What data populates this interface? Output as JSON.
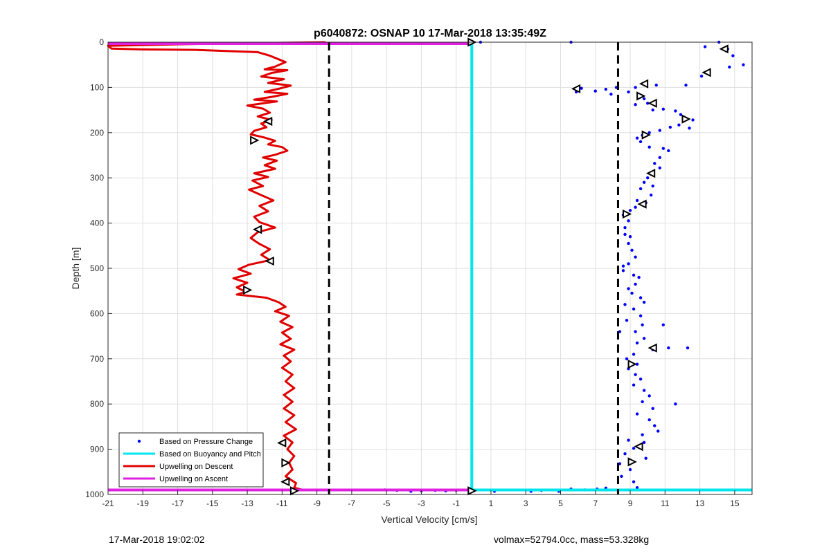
{
  "chart_data": {
    "type": "scatter",
    "title": "p6040872: OSNAP 10 17-Mar-2018 13:35:49Z",
    "xlabel": "Vertical Velocity [cm/s]",
    "ylabel": "Depth [m]",
    "xlim": [
      -21,
      16
    ],
    "ylim": [
      0,
      1000
    ],
    "y_reversed": true,
    "grid": true,
    "x_ticks": [
      -21,
      -19,
      -17,
      -15,
      -13,
      -11,
      -9,
      -7,
      -5,
      -3,
      -1,
      1,
      3,
      5,
      7,
      9,
      11,
      13,
      15
    ],
    "y_ticks": [
      0,
      100,
      200,
      300,
      400,
      500,
      600,
      700,
      800,
      900,
      1000
    ],
    "legend_position": "bottom-left",
    "series": [
      {
        "name": "Based on Pressure Change",
        "kind": "points",
        "color": "#0000ff",
        "points": [
          [
            5.6,
            0
          ],
          [
            14.1,
            0
          ],
          [
            13.3,
            10
          ],
          [
            14.6,
            15
          ],
          [
            14.9,
            30
          ],
          [
            15.5,
            50
          ],
          [
            14.7,
            55
          ],
          [
            13.1,
            75
          ],
          [
            12.2,
            95
          ],
          [
            10.5,
            95
          ],
          [
            9.3,
            100
          ],
          [
            8.9,
            110
          ],
          [
            8.2,
            100
          ],
          [
            7.6,
            104
          ],
          [
            7.0,
            108
          ],
          [
            6.2,
            102
          ],
          [
            5.9,
            110
          ],
          [
            7.9,
            115
          ],
          [
            9.8,
            125
          ],
          [
            9.3,
            138
          ],
          [
            10.3,
            150
          ],
          [
            10.0,
            135
          ],
          [
            10.9,
            148
          ],
          [
            11.6,
            152
          ],
          [
            11.9,
            160
          ],
          [
            12.6,
            172
          ],
          [
            12.4,
            190
          ],
          [
            11.8,
            183
          ],
          [
            11.3,
            188
          ],
          [
            10.7,
            195
          ],
          [
            10.1,
            200
          ],
          [
            9.7,
            206
          ],
          [
            9.4,
            212
          ],
          [
            9.6,
            220
          ],
          [
            10.1,
            232
          ],
          [
            10.9,
            235
          ],
          [
            11.2,
            240
          ],
          [
            10.7,
            255
          ],
          [
            10.4,
            268
          ],
          [
            10.7,
            278
          ],
          [
            10.2,
            292
          ],
          [
            10.0,
            300
          ],
          [
            9.8,
            310
          ],
          [
            10.3,
            318
          ],
          [
            9.6,
            324
          ],
          [
            10.2,
            338
          ],
          [
            9.4,
            350
          ],
          [
            9.9,
            355
          ],
          [
            9.3,
            365
          ],
          [
            9.0,
            372
          ],
          [
            8.6,
            382
          ],
          [
            8.9,
            395
          ],
          [
            8.7,
            410
          ],
          [
            8.7,
            425
          ],
          [
            9.0,
            430
          ],
          [
            8.9,
            445
          ],
          [
            9.1,
            460
          ],
          [
            9.3,
            475
          ],
          [
            8.9,
            490
          ],
          [
            8.6,
            505
          ],
          [
            9.2,
            515
          ],
          [
            9.5,
            520
          ],
          [
            9.3,
            535
          ],
          [
            8.9,
            545
          ],
          [
            9.1,
            555
          ],
          [
            9.6,
            565
          ],
          [
            9.8,
            575
          ],
          [
            9.2,
            590
          ],
          [
            9.6,
            605
          ],
          [
            8.8,
            615
          ],
          [
            9.7,
            625
          ],
          [
            9.3,
            640
          ],
          [
            9.8,
            655
          ],
          [
            9.4,
            665
          ],
          [
            10.3,
            680
          ],
          [
            11.2,
            676
          ],
          [
            12.3,
            676
          ],
          [
            9.2,
            690
          ],
          [
            8.8,
            700
          ],
          [
            9.4,
            712
          ],
          [
            8.9,
            722
          ],
          [
            9.3,
            735
          ],
          [
            9.6,
            745
          ],
          [
            9.2,
            758
          ],
          [
            9.8,
            770
          ],
          [
            10.1,
            782
          ],
          [
            9.7,
            795
          ],
          [
            10.3,
            810
          ],
          [
            9.4,
            822
          ],
          [
            10.1,
            835
          ],
          [
            10.4,
            848
          ],
          [
            10.6,
            860
          ],
          [
            9.7,
            868
          ],
          [
            8.9,
            880
          ],
          [
            9.8,
            885
          ],
          [
            9.2,
            898
          ],
          [
            8.7,
            910
          ],
          [
            9.9,
            920
          ],
          [
            8.4,
            932
          ],
          [
            9.0,
            945
          ],
          [
            8.5,
            960
          ],
          [
            9.2,
            972
          ],
          [
            9.4,
            985
          ],
          [
            11.6,
            800
          ],
          [
            10.9,
            625
          ],
          [
            8.4,
            640
          ],
          [
            8.6,
            495
          ],
          [
            8.7,
            580
          ],
          [
            -5.1,
            990
          ],
          [
            -4.4,
            991
          ],
          [
            -3.6,
            993
          ],
          [
            -3.0,
            992
          ],
          [
            -2.2,
            991
          ],
          [
            -1.6,
            992
          ],
          [
            -1.0,
            991
          ],
          [
            -0.3,
            990
          ],
          [
            1.2,
            993
          ],
          [
            3.3,
            993
          ],
          [
            3.9,
            991
          ],
          [
            4.9,
            993
          ],
          [
            5.6,
            988
          ],
          [
            6.4,
            990
          ],
          [
            7.1,
            988
          ],
          [
            7.6,
            986
          ],
          [
            0.4,
            0
          ]
        ]
      },
      {
        "name": "Based on Buoyancy and Pitch",
        "kind": "line",
        "color": "#00e5ee",
        "points": [
          [
            -0.1,
            0
          ],
          [
            -0.1,
            990
          ]
        ],
        "points_2": [
          [
            -0.1,
            990
          ],
          [
            16,
            990
          ]
        ]
      },
      {
        "name": "Upwelling on Descent",
        "kind": "line",
        "color": "#e00000",
        "points": [
          [
            -8.5,
            0
          ],
          [
            -16,
            4
          ],
          [
            -21,
            8
          ],
          [
            -20.8,
            14
          ],
          [
            -19,
            16
          ],
          [
            -16,
            17
          ],
          [
            -12.4,
            22
          ],
          [
            -11.7,
            30
          ],
          [
            -10.8,
            44
          ],
          [
            -11.4,
            54
          ],
          [
            -12.0,
            60
          ],
          [
            -10.7,
            62
          ],
          [
            -11.6,
            68
          ],
          [
            -12.2,
            76
          ],
          [
            -10.9,
            82
          ],
          [
            -11.8,
            90
          ],
          [
            -10.5,
            96
          ],
          [
            -11.2,
            103
          ],
          [
            -12.0,
            110
          ],
          [
            -10.7,
            114
          ],
          [
            -11.6,
            121
          ],
          [
            -12.6,
            127
          ],
          [
            -11.3,
            131
          ],
          [
            -13.0,
            140
          ],
          [
            -12.1,
            147
          ],
          [
            -11.7,
            156
          ],
          [
            -12.4,
            164
          ],
          [
            -11.6,
            172
          ],
          [
            -12.2,
            180
          ],
          [
            -11.9,
            188
          ],
          [
            -12.6,
            196
          ],
          [
            -12.8,
            204
          ],
          [
            -12.1,
            210
          ],
          [
            -11.4,
            218
          ],
          [
            -11.8,
            226
          ],
          [
            -11.0,
            232
          ],
          [
            -10.7,
            240
          ],
          [
            -11.4,
            249
          ],
          [
            -12.1,
            255
          ],
          [
            -11.3,
            262
          ],
          [
            -12.0,
            272
          ],
          [
            -11.4,
            280
          ],
          [
            -12.6,
            290
          ],
          [
            -11.8,
            298
          ],
          [
            -12.7,
            306
          ],
          [
            -12.1,
            318
          ],
          [
            -12.9,
            326
          ],
          [
            -12.2,
            338
          ],
          [
            -11.5,
            350
          ],
          [
            -12.3,
            362
          ],
          [
            -11.8,
            374
          ],
          [
            -12.6,
            386
          ],
          [
            -12.3,
            398
          ],
          [
            -11.4,
            410
          ],
          [
            -12.4,
            420
          ],
          [
            -12.8,
            433
          ],
          [
            -12.3,
            446
          ],
          [
            -11.7,
            458
          ],
          [
            -12.2,
            470
          ],
          [
            -11.7,
            482
          ],
          [
            -12.9,
            492
          ],
          [
            -13.5,
            502
          ],
          [
            -12.8,
            512
          ],
          [
            -13.8,
            522
          ],
          [
            -13.0,
            532
          ],
          [
            -13.6,
            542
          ],
          [
            -13.1,
            552
          ],
          [
            -13.6,
            558
          ],
          [
            -11.9,
            565
          ],
          [
            -11.2,
            575
          ],
          [
            -10.8,
            585
          ],
          [
            -11.4,
            595
          ],
          [
            -10.6,
            605
          ],
          [
            -11.1,
            618
          ],
          [
            -10.4,
            630
          ],
          [
            -11.0,
            642
          ],
          [
            -10.5,
            656
          ],
          [
            -11.1,
            668
          ],
          [
            -10.3,
            680
          ],
          [
            -10.9,
            693
          ],
          [
            -10.5,
            706
          ],
          [
            -11.0,
            720
          ],
          [
            -10.4,
            735
          ],
          [
            -10.8,
            750
          ],
          [
            -10.3,
            765
          ],
          [
            -10.9,
            780
          ],
          [
            -10.4,
            795
          ],
          [
            -10.9,
            810
          ],
          [
            -10.3,
            825
          ],
          [
            -10.8,
            840
          ],
          [
            -10.2,
            856
          ],
          [
            -10.9,
            870
          ],
          [
            -10.4,
            885
          ],
          [
            -10.7,
            900
          ],
          [
            -10.3,
            915
          ],
          [
            -10.6,
            930
          ],
          [
            -10.4,
            945
          ],
          [
            -10.8,
            960
          ],
          [
            -10.2,
            975
          ],
          [
            -10.3,
            985
          ],
          [
            -9.8,
            990
          ]
        ]
      },
      {
        "name": "Upwelling on Ascent",
        "kind": "line",
        "color": "#e020e0",
        "points": [
          [
            -21,
            3
          ],
          [
            -0.1,
            3
          ]
        ],
        "points_2": [
          [
            -21,
            990
          ],
          [
            -0.1,
            990
          ]
        ]
      },
      {
        "name": "",
        "kind": "dashed-vertical",
        "color": "#000000",
        "x": -8.3
      },
      {
        "name": "",
        "kind": "dashed-vertical",
        "color": "#000000",
        "x": 8.3
      },
      {
        "name": "",
        "kind": "triangle-markers",
        "color": "#000000",
        "points": [
          [
            -11.8,
            175,
            "L"
          ],
          [
            -12.6,
            217,
            "R"
          ],
          [
            -12.4,
            414,
            "L"
          ],
          [
            -11.7,
            484,
            "L"
          ],
          [
            -13.0,
            548,
            "R"
          ],
          [
            -11.0,
            886,
            "L"
          ],
          [
            -10.8,
            930,
            "R"
          ],
          [
            -10.8,
            972,
            "L"
          ],
          [
            -10.3,
            992,
            "R"
          ],
          [
            -0.1,
            0,
            "R"
          ],
          [
            -0.1,
            992,
            "R"
          ],
          [
            14.4,
            15,
            "L"
          ],
          [
            13.4,
            67,
            "L"
          ],
          [
            9.8,
            92,
            "L"
          ],
          [
            5.9,
            103,
            "L"
          ],
          [
            9.6,
            119,
            "R"
          ],
          [
            10.3,
            135,
            "L"
          ],
          [
            12.2,
            170,
            "R"
          ],
          [
            9.9,
            205,
            "R"
          ],
          [
            10.2,
            290,
            "L"
          ],
          [
            9.7,
            358,
            "L"
          ],
          [
            8.8,
            380,
            "R"
          ],
          [
            10.3,
            676,
            "L"
          ],
          [
            9.1,
            712,
            "R"
          ],
          [
            9.5,
            894,
            "L"
          ],
          [
            9.1,
            928,
            "R"
          ]
        ]
      }
    ]
  },
  "footer": {
    "left": "17-Mar-2018 19:02:02",
    "right": "volmax=52794.0cc, mass=53.328kg"
  }
}
